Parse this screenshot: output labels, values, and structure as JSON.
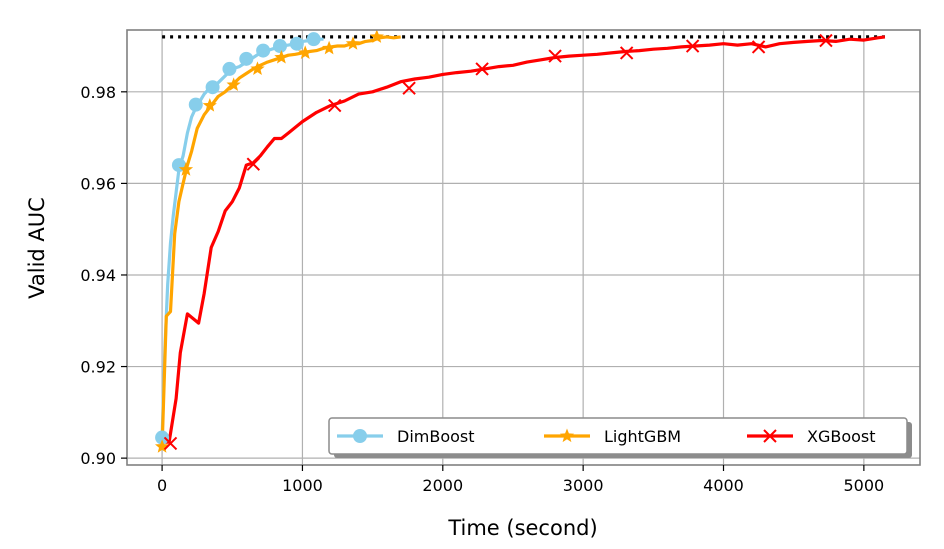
{
  "chart_data": {
    "type": "line",
    "xlabel": "Time (second)",
    "ylabel": "Valid AUC",
    "xlim": [
      -250,
      5400
    ],
    "ylim": [
      0.8985,
      0.9935
    ],
    "x_ticks": [
      "0",
      "1000",
      "2000",
      "3000",
      "4000",
      "5000"
    ],
    "x_tick_values": [
      0,
      1000,
      2000,
      3000,
      4000,
      5000
    ],
    "y_ticks": [
      "0.90",
      "0.92",
      "0.94",
      "0.96",
      "0.98"
    ],
    "y_tick_values": [
      0.9,
      0.92,
      0.94,
      0.96,
      0.98
    ],
    "grid": true,
    "legend_position": "lower-right",
    "reference_line": {
      "y": 0.992,
      "x_range": [
        0,
        5150
      ],
      "style": "dotted",
      "color": "#000000"
    },
    "series": [
      {
        "name": "DimBoost",
        "color": "#87ceeb",
        "marker": "circle",
        "x": [
          0,
          20,
          40,
          60,
          80,
          100,
          120,
          150,
          180,
          210,
          240,
          270,
          300,
          330,
          360,
          400,
          450,
          500,
          550,
          600,
          650,
          700,
          750,
          800,
          850,
          900,
          950,
          1000,
          1050,
          1100,
          1150
        ],
        "y": [
          0.9045,
          0.924,
          0.938,
          0.947,
          0.953,
          0.958,
          0.963,
          0.966,
          0.971,
          0.9745,
          0.9765,
          0.978,
          0.9795,
          0.9805,
          0.981,
          0.982,
          0.9835,
          0.985,
          0.9855,
          0.9865,
          0.9875,
          0.9885,
          0.989,
          0.9895,
          0.99,
          0.9902,
          0.9905,
          0.991,
          0.9912,
          0.9915,
          0.9915
        ],
        "marker_x": [
          0,
          120,
          240,
          360,
          480,
          600,
          720,
          840,
          960,
          1080
        ],
        "marker_y": [
          0.9045,
          0.964,
          0.9772,
          0.981,
          0.985,
          0.9872,
          0.989,
          0.99,
          0.9905,
          0.9915
        ]
      },
      {
        "name": "LightGBM",
        "color": "#ffa500",
        "marker": "star",
        "x": [
          0,
          30,
          60,
          90,
          120,
          150,
          180,
          210,
          250,
          300,
          350,
          400,
          450,
          500,
          550,
          600,
          650,
          700,
          750,
          800,
          850,
          900,
          950,
          1000,
          1050,
          1100,
          1150,
          1200,
          1250,
          1300,
          1350,
          1400,
          1450,
          1500,
          1550,
          1600,
          1650,
          1700
        ],
        "y": [
          0.9025,
          0.931,
          0.932,
          0.949,
          0.956,
          0.96,
          0.964,
          0.967,
          0.972,
          0.975,
          0.977,
          0.979,
          0.98,
          0.9815,
          0.983,
          0.984,
          0.985,
          0.9858,
          0.9865,
          0.987,
          0.9875,
          0.988,
          0.9882,
          0.9885,
          0.9888,
          0.989,
          0.9895,
          0.9898,
          0.99,
          0.99,
          0.9905,
          0.9905,
          0.991,
          0.9912,
          0.9918,
          0.992,
          0.9918,
          0.992
        ],
        "marker_x": [
          0,
          170,
          340,
          510,
          680,
          850,
          1020,
          1190,
          1360,
          1530
        ],
        "marker_y": [
          0.9025,
          0.963,
          0.977,
          0.9815,
          0.985,
          0.9875,
          0.9885,
          0.9895,
          0.9905,
          0.992
        ]
      },
      {
        "name": "XGBoost",
        "color": "#ff0000",
        "marker": "x",
        "x": [
          0,
          50,
          100,
          130,
          180,
          220,
          260,
          300,
          350,
          400,
          450,
          500,
          550,
          600,
          650,
          700,
          750,
          800,
          850,
          900,
          1000,
          1100,
          1200,
          1300,
          1400,
          1500,
          1600,
          1700,
          1800,
          1900,
          2000,
          2100,
          2200,
          2300,
          2400,
          2500,
          2600,
          2700,
          2800,
          2900,
          3000,
          3100,
          3200,
          3300,
          3400,
          3500,
          3600,
          3700,
          3800,
          3900,
          4000,
          4100,
          4200,
          4300,
          4400,
          4500,
          4600,
          4700,
          4800,
          4900,
          5000,
          5100,
          5150
        ],
        "y": [
          0.9035,
          0.9035,
          0.913,
          0.923,
          0.9315,
          0.9305,
          0.9295,
          0.936,
          0.946,
          0.9495,
          0.954,
          0.956,
          0.959,
          0.964,
          0.9645,
          0.966,
          0.968,
          0.9698,
          0.9698,
          0.971,
          0.9735,
          0.9755,
          0.977,
          0.978,
          0.9795,
          0.98,
          0.981,
          0.9822,
          0.9828,
          0.9832,
          0.9838,
          0.9842,
          0.9845,
          0.985,
          0.9855,
          0.9858,
          0.9865,
          0.987,
          0.9875,
          0.9878,
          0.988,
          0.9882,
          0.9885,
          0.9888,
          0.989,
          0.9893,
          0.9895,
          0.9898,
          0.99,
          0.9902,
          0.9905,
          0.9902,
          0.9905,
          0.9898,
          0.9905,
          0.9908,
          0.991,
          0.9912,
          0.991,
          0.9915,
          0.9913,
          0.9918,
          0.992
        ],
        "marker_x": [
          60,
          650,
          1230,
          1760,
          2280,
          2800,
          3310,
          3780,
          4250,
          4730
        ],
        "marker_y": [
          0.9032,
          0.9642,
          0.977,
          0.9808,
          0.985,
          0.9878,
          0.9885,
          0.99,
          0.9898,
          0.9912
        ]
      }
    ]
  }
}
